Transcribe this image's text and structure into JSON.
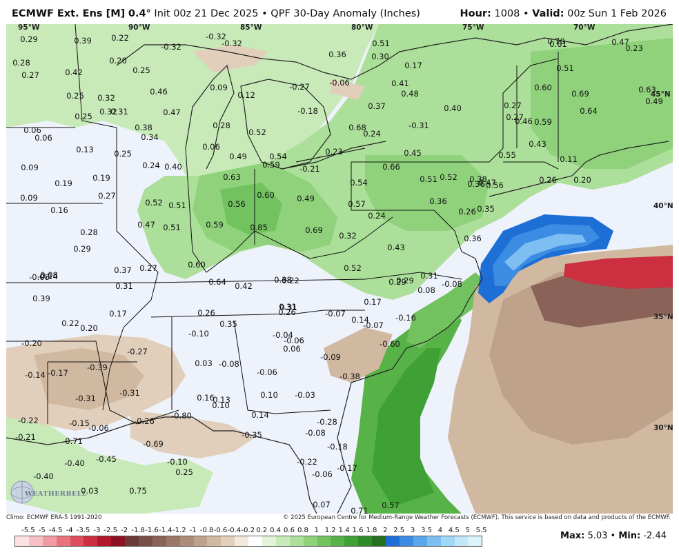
{
  "header": {
    "model": "ECMWF Ext. Ens [M]",
    "resolution": "0.4°",
    "init": "Init 00z 21 Dec 2025",
    "product": "QPF 30-Day Anomaly (Inches)",
    "hour_label": "Hour:",
    "hour_value": "1008",
    "valid_label": "Valid:",
    "valid_value": "00z Sun 1 Feb 2026"
  },
  "longitude_labels": [
    "95°W",
    "90°W",
    "85°W",
    "80°W",
    "75°W",
    "70°W"
  ],
  "latitude_labels": [
    "45°N",
    "40°N",
    "35°N",
    "30°N"
  ],
  "map_values": [
    "0.29",
    "0.39",
    "0.22",
    "-0.32",
    "-0.32",
    "0.28",
    "0.27",
    "0.20",
    "0.25",
    "0.42",
    "0.46",
    "0.32",
    "0.09",
    "0.12",
    "0.25",
    "0.32",
    "0.31",
    "0.47",
    "0.25",
    "0.38",
    "0.34",
    "0.06",
    "0.06",
    "0.13",
    "0.25",
    "0.24",
    "0.40",
    "0.09",
    "0.19",
    "0.19",
    "0.27",
    "0.52",
    "0.51",
    "0.09",
    "0.16",
    "0.47",
    "0.51",
    "0.28",
    "0.29",
    "0.37",
    "0.27",
    "0.31",
    "-0.14",
    "0.39",
    "0.22",
    "0.20",
    "0.17",
    "-0.32",
    "0.36",
    "0.51",
    "0.30",
    "0.17",
    "0.41",
    "0.48",
    "-0.27",
    "-0.06",
    "0.37",
    "-0.18",
    "0.52",
    "0.28",
    "0.49",
    "0.54",
    "0.59",
    "0.06",
    "0.63",
    "0.56",
    "0.60",
    "0.49",
    "0.59",
    "0.85",
    "0.69",
    "0.60",
    "0.64",
    "0.42",
    "0.38",
    "0.22",
    "0.26",
    "0.35",
    "0.31",
    "0.26",
    "-0.10",
    "0.03",
    "-0.08",
    "0.16",
    "0.13",
    "0.10",
    "-0.27",
    "-0.31",
    "-0.39",
    "-0.31",
    "-0.15",
    "-0.06",
    "-0.26",
    "-0.80",
    "-0.71",
    "-0.69",
    "-0.45",
    "-0.40",
    "-0.40",
    "-0.10",
    "0.25",
    "0.03",
    "0.75",
    "-0.22",
    "-0.21",
    "-0.14",
    "-0.17",
    "0.31",
    "-0.20",
    "0.08",
    "-0.08",
    "0.68",
    "0.24",
    "-0.31",
    "0.45",
    "0.66",
    "0.51",
    "0.36",
    "0.57",
    "0.54",
    "0.24",
    "0.32",
    "0.43",
    "0.52",
    "0.29",
    "0.17",
    "0.14",
    "-0.07",
    "-0.07",
    "-0.16",
    "0.08",
    "-0.08",
    "-0.04",
    "-0.06",
    "0.06",
    "-0.09",
    "-0.06",
    "0.10",
    "-0.03",
    "0.14",
    "-0.35",
    "-0.28",
    "-0.08",
    "-0.18",
    "-0.22",
    "-0.06",
    "-0.17",
    "-0.38",
    "-0.60",
    "0.40",
    "0.52",
    "0.36",
    "0.35",
    "0.29",
    "0.31",
    "0.27",
    "0.46",
    "0.60",
    "0.59",
    "0.43",
    "0.55",
    "0.47",
    "0.38",
    "0.56",
    "0.26",
    "0.36",
    "0.70",
    "0.61",
    "0.47",
    "0.23",
    "0.51",
    "0.69",
    "0.64",
    "0.27",
    "0.63",
    "0.49",
    "0.11",
    "0.26",
    "0.20",
    "-0.21",
    "0.23",
    "0.71",
    "0.57",
    "0.07"
  ],
  "logo_text": "WEATHERBELL",
  "footer": {
    "climo": "Climo: ECMWF ERA-5 1991-2020",
    "copyright": "© 2025 European Centre for Medium-Range Weather Forecasts (ECMWF). This service is based on data and products of the ECMWF."
  },
  "colorbar": {
    "ticks": [
      "-5.5",
      "-5",
      "-4.5",
      "-4",
      "-3.5",
      "-3",
      "-2.5",
      "-2",
      "-1.8",
      "-1.6",
      "-1.4",
      "-1.2",
      "-1",
      "-0.8",
      "-0.6",
      "-0.4",
      "-0.2",
      "0.2",
      "0.4",
      "0.6",
      "0.8",
      "1",
      "1.2",
      "1.4",
      "1.6",
      "1.8",
      "2",
      "2.5",
      "3",
      "3.5",
      "4",
      "4.5",
      "5",
      "5.5"
    ],
    "colors": [
      "#fde2e4",
      "#f8c0c5",
      "#f19aa2",
      "#e8737f",
      "#dd4f5e",
      "#cc2f40",
      "#b3172b",
      "#8e1121",
      "#6b3a38",
      "#7a4e48",
      "#8a6258",
      "#9b7768",
      "#ad8c79",
      "#bfa28c",
      "#d1b8a1",
      "#e1cfbb",
      "#f2e8dc",
      "#ffffff",
      "#e2f4d9",
      "#c8eab9",
      "#acdf99",
      "#8fd27b",
      "#72c35f",
      "#57b348",
      "#3fa036",
      "#2f8b2a",
      "#256f21",
      "#1d6fd6",
      "#3c8ce3",
      "#5aa6ec",
      "#7dbff2",
      "#a0d6f6",
      "#c0e8f8",
      "#daf4fa"
    ]
  },
  "maxmin": {
    "max_label": "Max:",
    "max_value": "5.03",
    "min_label": "Min:",
    "min_value": "-2.44"
  }
}
